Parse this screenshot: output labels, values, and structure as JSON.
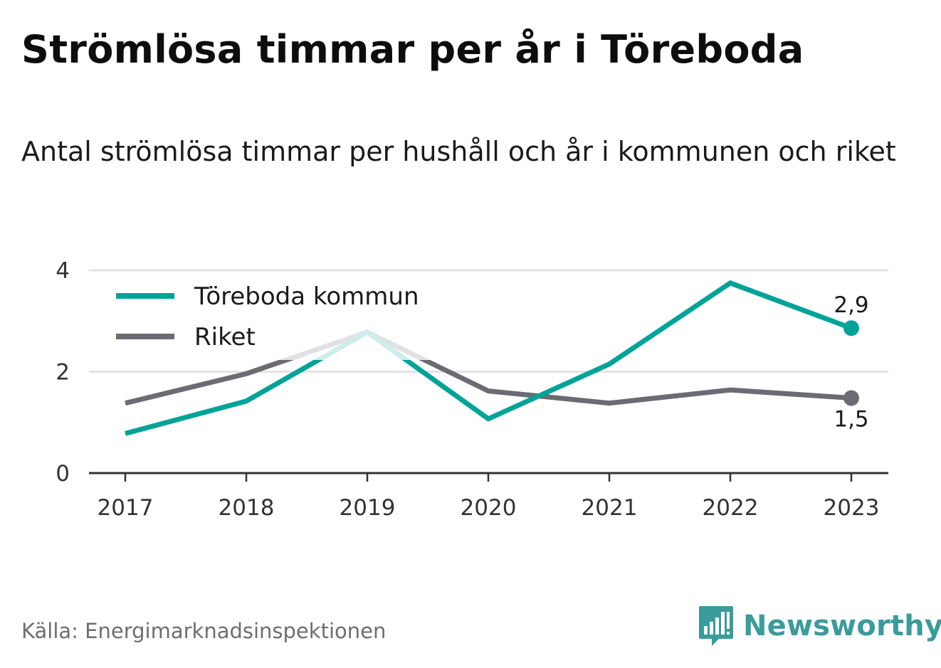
{
  "title": "Strömlösa timmar per år i Töreboda",
  "subtitle": "Antal strömlösa timmar per hushåll och år i kommunen och riket",
  "source": "Källa: Energimarknadsinspektionen",
  "brand": {
    "name": "Newsworthy",
    "icon": "newsworthy-logo-icon",
    "color": "#3a9c9a"
  },
  "chart_data": {
    "type": "line",
    "x": [
      "2017",
      "2018",
      "2019",
      "2020",
      "2021",
      "2022",
      "2023"
    ],
    "ylim": [
      0,
      4
    ],
    "yticks": [
      "0",
      "2",
      "4"
    ],
    "grid": true,
    "legend_position": "top-left",
    "series": [
      {
        "name": "Töreboda kommun",
        "color": "#00a398",
        "values": [
          0.78,
          1.42,
          2.78,
          1.07,
          2.15,
          3.75,
          2.86
        ],
        "end_label": "2,9"
      },
      {
        "name": "Riket",
        "color": "#6b6b73",
        "values": [
          1.38,
          1.96,
          2.78,
          1.62,
          1.38,
          1.64,
          1.48
        ],
        "end_label": "1,5"
      }
    ]
  }
}
